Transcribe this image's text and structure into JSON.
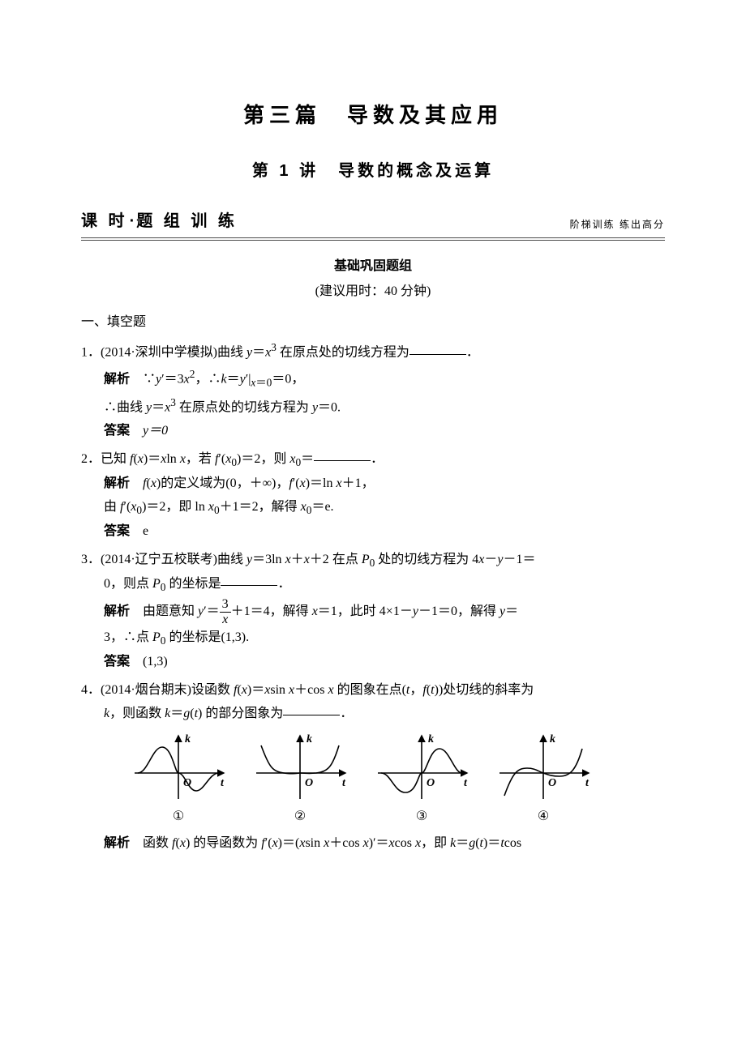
{
  "chapter_title": "第三篇　导数及其应用",
  "section_title": "第 1 讲　导数的概念及运算",
  "banner_left_a": "课 时",
  "banner_left_dot": "·",
  "banner_left_b": "题 组 训 练",
  "banner_right": "阶梯训练  练出高分",
  "group_title": "基础巩固题组",
  "suggest_time": "(建议用时：40 分钟)",
  "sec_label": "一、填空题",
  "labels": {
    "jiexi": "解析",
    "daan": "答案"
  },
  "q1": {
    "stem_a": "1．(2014·深圳中学模拟)曲线 ",
    "stem_b": " 在原点处的切线方程为",
    "stem_c": "．",
    "jiexi_a": "∵",
    "jiexi_b": "＝3",
    "jiexi_c": "，∴",
    "jiexi_d": "＝",
    "jiexi_e": "＝0，",
    "jiexi2_a": "∴曲线 ",
    "jiexi2_b": " 在原点处的切线方程为 ",
    "jiexi2_c": "＝0.",
    "answer": "y＝0"
  },
  "q2": {
    "stem_a": "2．已知 ",
    "stem_b": "，若 ",
    "stem_c": "＝2，则 ",
    "stem_d": "＝",
    "stem_e": "．",
    "jiexi_a": "的定义域为(0，＋∞)，",
    "jiexi_b": "＝ln ",
    "jiexi_c": "＋1，",
    "jiexi2_a": "由 ",
    "jiexi2_b": "＝2，即 ln ",
    "jiexi2_c": "＋1＝2，解得 ",
    "jiexi2_d": "＝e.",
    "answer": "e"
  },
  "q3": {
    "stem_a": "3．(2014·辽宁五校联考)曲线 ",
    "stem_b": " 在点 ",
    "stem_c": " 处的切线方程为 4",
    "stem_c2": "－",
    "stem_c3": "－1＝",
    "stem_d": "0，则点 ",
    "stem_e": " 的坐标是",
    "stem_f": "．",
    "jiexi_a": "由题意知 ",
    "jiexi_b": "＝",
    "jiexi_c": "＋1＝4，解得 ",
    "jiexi_d": "＝1，此时 4×1－",
    "jiexi_e": "－1＝0，解得 ",
    "jiexi_f": "＝",
    "jiexi2_a": "3，∴点 ",
    "jiexi2_b": " 的坐标是(1,3).",
    "frac_num": "3",
    "frac_den_var": "x",
    "answer": "(1,3)"
  },
  "q4": {
    "stem_a": "4．(2014·烟台期末)设函数 ",
    "stem_b": " 的图象在点",
    "stem_c": "处切线的斜率为",
    "stem_d": "，则函数 ",
    "stem_e": " 的部分图象为",
    "stem_f": "．",
    "enum1": "①",
    "enum2": "②",
    "enum3": "③",
    "enum4": "④",
    "jiexi_a": "函数 ",
    "jiexi_b": " 的导函数为 ",
    "jiexi_c": "＝(",
    "jiexi_d": ")′＝",
    "jiexi_e": "，即 ",
    "jiexi_f": "＝",
    "jiexi_g": "＝"
  },
  "chart": {
    "width": 120,
    "height": 76,
    "axis_origin_label_O": "O",
    "axis_x_label": "t",
    "axis_y_label": "k",
    "axis_color": "#000000",
    "curve_color": "#000000",
    "stroke_width": 1.6,
    "arrow_size": 6,
    "plots": [
      {
        "id": 1,
        "paths": [
          "M 10 52 C 22 52, 28 20, 40 20 C 52 20, 56 52, 60 52",
          "M 60 52 C 68 52, 72 74, 82 74 C 92 74, 98 52, 110 52"
        ]
      },
      {
        "id": 2,
        "paths": [
          "M 12 18 C 22 45, 26 50, 40 52 C 48 53, 50 53, 60 52",
          "M 60 52 C 66 52, 70 53, 80 52 C 95 50, 100 44, 108 18"
        ]
      },
      {
        "id": 3,
        "paths": [
          "M 10 52 C 22 52, 26 76, 40 76 C 54 76, 56 52, 60 52",
          "M 60 52 C 66 52, 70 22, 82 22 C 94 22, 100 52, 110 52"
        ]
      },
      {
        "id": 4,
        "paths": [
          "M 12 80 C 22 52, 28 46, 40 46 C 50 46, 54 50, 60 52",
          "M 60 52 C 66 54, 70 56, 80 56 C 92 56, 100 50, 108 22"
        ]
      }
    ]
  }
}
